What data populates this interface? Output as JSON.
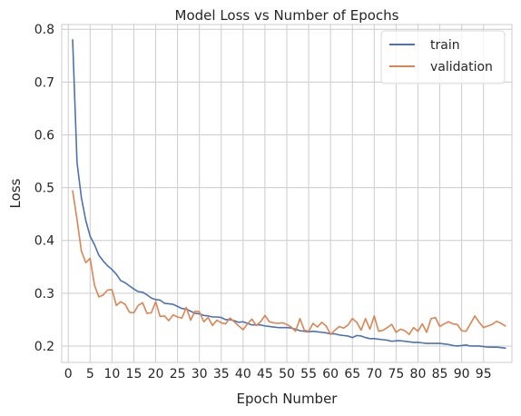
{
  "chart_data": {
    "type": "line",
    "title": "Model Loss vs Number of Epochs",
    "xlabel": "Epoch Number",
    "ylabel": "Loss",
    "xticks": [
      0,
      5,
      10,
      15,
      20,
      25,
      30,
      35,
      40,
      45,
      50,
      55,
      60,
      65,
      70,
      75,
      80,
      85,
      90,
      95
    ],
    "yticks": [
      0.2,
      0.3,
      0.4,
      0.5,
      0.6,
      0.7,
      0.8
    ],
    "xlim": [
      -1.5,
      101.5
    ],
    "ylim": [
      0.169,
      0.809
    ],
    "grid": true,
    "legend_position": "top-right",
    "x": [
      1,
      2,
      3,
      4,
      5,
      6,
      7,
      8,
      9,
      10,
      11,
      12,
      13,
      14,
      15,
      16,
      17,
      18,
      19,
      20,
      21,
      22,
      23,
      24,
      25,
      26,
      27,
      28,
      29,
      30,
      31,
      32,
      33,
      34,
      35,
      36,
      37,
      38,
      39,
      40,
      41,
      42,
      43,
      44,
      45,
      46,
      47,
      48,
      49,
      50,
      51,
      52,
      53,
      54,
      55,
      56,
      57,
      58,
      59,
      60,
      61,
      62,
      63,
      64,
      65,
      66,
      67,
      68,
      69,
      70,
      71,
      72,
      73,
      74,
      75,
      76,
      77,
      78,
      79,
      80,
      81,
      82,
      83,
      84,
      85,
      86,
      87,
      88,
      89,
      90,
      91,
      92,
      93,
      94,
      95,
      96,
      97,
      98,
      99,
      100
    ],
    "series": [
      {
        "name": "train",
        "color": "#4c72b0",
        "values": [
          0.78,
          0.548,
          0.481,
          0.438,
          0.408,
          0.392,
          0.372,
          0.361,
          0.352,
          0.345,
          0.336,
          0.324,
          0.32,
          0.314,
          0.308,
          0.303,
          0.302,
          0.297,
          0.291,
          0.288,
          0.287,
          0.281,
          0.28,
          0.279,
          0.275,
          0.271,
          0.27,
          0.266,
          0.262,
          0.261,
          0.258,
          0.257,
          0.255,
          0.255,
          0.254,
          0.25,
          0.25,
          0.248,
          0.245,
          0.246,
          0.243,
          0.24,
          0.24,
          0.24,
          0.238,
          0.237,
          0.236,
          0.235,
          0.235,
          0.235,
          0.234,
          0.232,
          0.229,
          0.228,
          0.227,
          0.228,
          0.227,
          0.226,
          0.225,
          0.223,
          0.223,
          0.221,
          0.22,
          0.219,
          0.216,
          0.22,
          0.219,
          0.216,
          0.214,
          0.214,
          0.213,
          0.212,
          0.211,
          0.209,
          0.21,
          0.21,
          0.209,
          0.208,
          0.207,
          0.207,
          0.206,
          0.205,
          0.205,
          0.205,
          0.205,
          0.204,
          0.203,
          0.201,
          0.2,
          0.201,
          0.202,
          0.2,
          0.2,
          0.2,
          0.199,
          0.198,
          0.198,
          0.198,
          0.197,
          0.196
        ]
      },
      {
        "name": "validation",
        "color": "#dd8452",
        "values": [
          0.494,
          0.44,
          0.38,
          0.358,
          0.366,
          0.315,
          0.293,
          0.297,
          0.306,
          0.307,
          0.277,
          0.284,
          0.279,
          0.264,
          0.263,
          0.277,
          0.282,
          0.262,
          0.263,
          0.284,
          0.256,
          0.257,
          0.248,
          0.259,
          0.255,
          0.253,
          0.273,
          0.249,
          0.266,
          0.265,
          0.246,
          0.254,
          0.239,
          0.249,
          0.244,
          0.242,
          0.253,
          0.246,
          0.238,
          0.231,
          0.242,
          0.251,
          0.239,
          0.246,
          0.258,
          0.246,
          0.244,
          0.243,
          0.244,
          0.241,
          0.236,
          0.228,
          0.252,
          0.23,
          0.228,
          0.243,
          0.236,
          0.245,
          0.238,
          0.222,
          0.23,
          0.237,
          0.234,
          0.24,
          0.252,
          0.245,
          0.23,
          0.252,
          0.232,
          0.257,
          0.228,
          0.23,
          0.235,
          0.241,
          0.226,
          0.232,
          0.229,
          0.222,
          0.235,
          0.228,
          0.242,
          0.226,
          0.252,
          0.254,
          0.237,
          0.242,
          0.246,
          0.242,
          0.241,
          0.229,
          0.228,
          0.242,
          0.257,
          0.245,
          0.235,
          0.238,
          0.241,
          0.247,
          0.243,
          0.238
        ]
      }
    ]
  }
}
